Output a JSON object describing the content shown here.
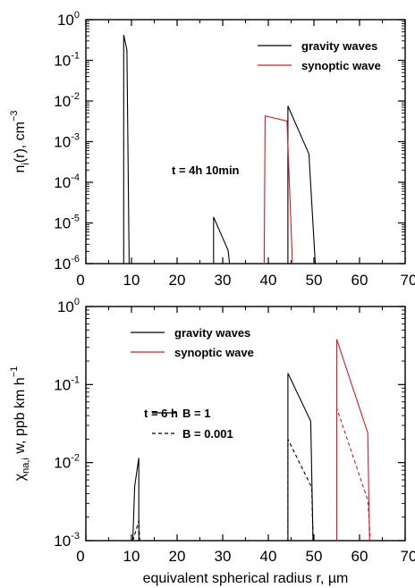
{
  "chart_data": [
    {
      "type": "line",
      "ylabel": "n_i(r), cm^-3",
      "ylabel_parts": {
        "main": "n",
        "sub": "i",
        "paren": "(r), cm",
        "sup": "−3"
      },
      "xlim": [
        0,
        70
      ],
      "ylim": [
        1e-06,
        1
      ],
      "yscale": "log",
      "xticks": [
        "0",
        "10",
        "20",
        "30",
        "40",
        "50",
        "60",
        "70"
      ],
      "yticks": [
        {
          "base": "10",
          "exp": "-6",
          "value": 1e-06
        },
        {
          "base": "10",
          "exp": "-5",
          "value": 1e-05
        },
        {
          "base": "10",
          "exp": "-4",
          "value": 0.0001
        },
        {
          "base": "10",
          "exp": "-3",
          "value": 0.001
        },
        {
          "base": "10",
          "exp": "-2",
          "value": 0.01
        },
        {
          "base": "10",
          "exp": "-1",
          "value": 0.1
        },
        {
          "base": "10",
          "exp": "0",
          "value": 1
        }
      ],
      "annotation": "t = 4h 10min",
      "legend": "top-right",
      "series": [
        {
          "name": "gravity waves",
          "color": "#000000",
          "dash": "solid",
          "segments": [
            [
              [
                8.3,
                1e-06
              ],
              [
                8.3,
                0.42
              ],
              [
                9.0,
                0.18
              ],
              [
                9.5,
                1e-06
              ]
            ],
            [
              [
                28.0,
                1e-06
              ],
              [
                28.0,
                1.4e-05
              ],
              [
                31.2,
                2.1e-06
              ],
              [
                31.5,
                1e-06
              ]
            ],
            [
              [
                44.3,
                1e-06
              ],
              [
                44.3,
                0.0075
              ],
              [
                48.9,
                0.0005
              ],
              [
                50.3,
                1e-06
              ]
            ]
          ]
        },
        {
          "name": "synoptic wave",
          "color": "#e0191e",
          "dash": "solid",
          "segments": [
            [
              [
                39.1,
                1e-06
              ],
              [
                39.3,
                0.0043
              ],
              [
                44.1,
                0.0032
              ],
              [
                45.3,
                1e-06
              ]
            ]
          ]
        }
      ]
    },
    {
      "type": "line",
      "xlabel": "equivalent spherical radius r, µm",
      "ylabel": "χ_na,i w, ppb km h^-1",
      "ylabel_parts": {
        "main": "χ",
        "sub": "na,i",
        "mid": " w, ppb km h",
        "sup": "−1"
      },
      "xlim": [
        0,
        70
      ],
      "ylim": [
        0.001,
        1
      ],
      "yscale": "log",
      "xticks": [
        "0",
        "10",
        "20",
        "30",
        "40",
        "50",
        "60",
        "70"
      ],
      "yticks": [
        {
          "base": "10",
          "exp": "-3",
          "value": 0.001
        },
        {
          "base": "10",
          "exp": "-2",
          "value": 0.01
        },
        {
          "base": "10",
          "exp": "-1",
          "value": 0.1
        },
        {
          "base": "10",
          "exp": "0",
          "value": 1
        }
      ],
      "annotation": "t = 6 h",
      "legend": "top-left",
      "style_legend": [
        {
          "label": "B = 1",
          "dash": "solid"
        },
        {
          "label": "B = 0.001",
          "dash": "dashed"
        }
      ],
      "series": [
        {
          "name": "gravity waves",
          "color": "#000000",
          "dash": "solid",
          "segments": [
            [
              [
                10.3,
                0.001
              ],
              [
                10.7,
                0.005
              ],
              [
                11.6,
                0.0115
              ],
              [
                11.6,
                0.001
              ]
            ],
            [
              [
                44.3,
                0.001
              ],
              [
                44.3,
                0.14
              ],
              [
                49.3,
                0.034
              ],
              [
                49.8,
                0.001
              ]
            ]
          ]
        },
        {
          "name": "gravity waves",
          "color": "#000000",
          "dash": "dashed",
          "segments": [
            [
              [
                10.3,
                0.001
              ],
              [
                10.9,
                0.0013
              ],
              [
                11.6,
                0.0018
              ],
              [
                11.8,
                0.001
              ]
            ],
            [
              [
                44.3,
                0.001
              ],
              [
                44.3,
                0.02
              ],
              [
                49.5,
                0.0048
              ],
              [
                49.8,
                0.001
              ]
            ]
          ]
        },
        {
          "name": "synoptic wave",
          "color": "#e0191e",
          "dash": "solid",
          "segments": [
            [
              [
                55.0,
                0.001
              ],
              [
                55.0,
                0.38
              ],
              [
                61.8,
                0.024
              ],
              [
                62.2,
                0.001
              ]
            ]
          ]
        },
        {
          "name": "synoptic wave",
          "color": "#e0191e",
          "dash": "dashed",
          "segments": [
            [
              [
                55.0,
                0.001
              ],
              [
                55.0,
                0.05
              ],
              [
                61.8,
                0.0033
              ],
              [
                62.4,
                0.001
              ]
            ]
          ]
        }
      ]
    }
  ]
}
